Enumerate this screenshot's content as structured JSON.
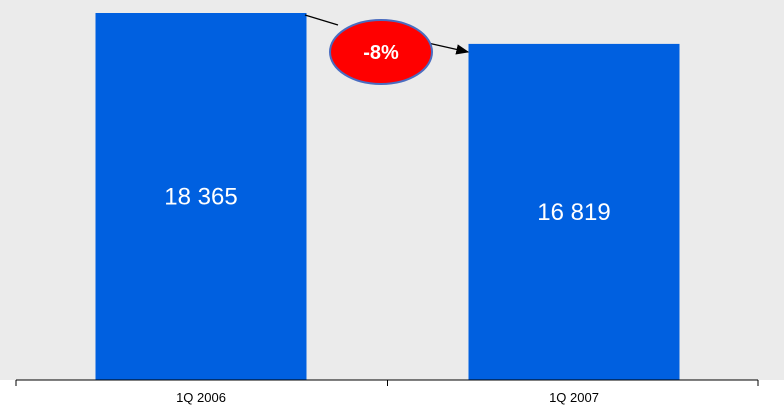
{
  "chart_data": {
    "type": "bar",
    "categories": [
      "1Q 2006",
      "1Q 2007"
    ],
    "values": [
      18365,
      16819
    ],
    "value_labels": [
      "18 365",
      "16 819"
    ],
    "ylim": [
      0,
      18365
    ],
    "grid": false,
    "annotation": {
      "text": "-8%",
      "from": "1Q 2006",
      "to": "1Q 2007"
    },
    "colors": {
      "bar": "#0060e0",
      "plot_background": "#ebebeb",
      "badge_fill": "#ff0000",
      "badge_border": "#4a6cc0",
      "axis": "#000000"
    }
  }
}
